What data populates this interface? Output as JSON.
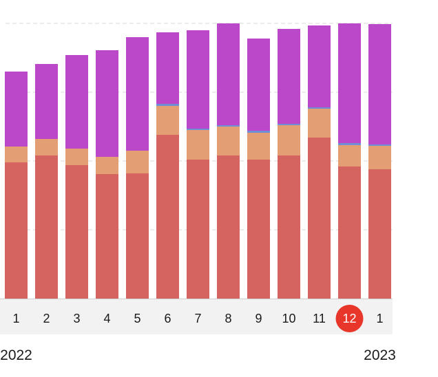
{
  "chart_data": {
    "type": "bar",
    "stacked": true,
    "categories": [
      "1",
      "2",
      "3",
      "4",
      "5",
      "6",
      "7",
      "8",
      "9",
      "10",
      "11",
      "12",
      "1"
    ],
    "years": [
      {
        "label": "2022",
        "start_index": 0
      },
      {
        "label": "2023",
        "start_index": 12
      }
    ],
    "selected_index": 11,
    "ylim": [
      0,
      100
    ],
    "grid": true,
    "series": [
      {
        "color": "#d56360",
        "values": [
          49.5,
          52,
          48.5,
          45.25,
          45.5,
          59.5,
          50.5,
          52,
          50.5,
          52,
          58.5,
          48,
          47
        ]
      },
      {
        "color": "#e39e73",
        "values": [
          5.75,
          6,
          6,
          6.25,
          8.25,
          10.5,
          10.75,
          10.5,
          9.75,
          11,
          10.5,
          7.75,
          8.5
        ]
      },
      {
        "color": "#6e8fd4",
        "values": [
          0,
          0,
          0,
          0,
          0,
          0.75,
          0.5,
          0.5,
          0.75,
          0.5,
          0.5,
          0.75,
          0.5
        ]
      },
      {
        "color": "#bb47c9",
        "values": [
          27.25,
          27.25,
          34,
          38.75,
          41.25,
          26,
          35.75,
          37,
          33.5,
          34.5,
          29.75,
          43.5,
          43.75
        ]
      }
    ],
    "colors": {
      "selected_badge": "#e8362a",
      "axis_band": "#f2f2f2",
      "grid": "#d9d9d9"
    }
  }
}
